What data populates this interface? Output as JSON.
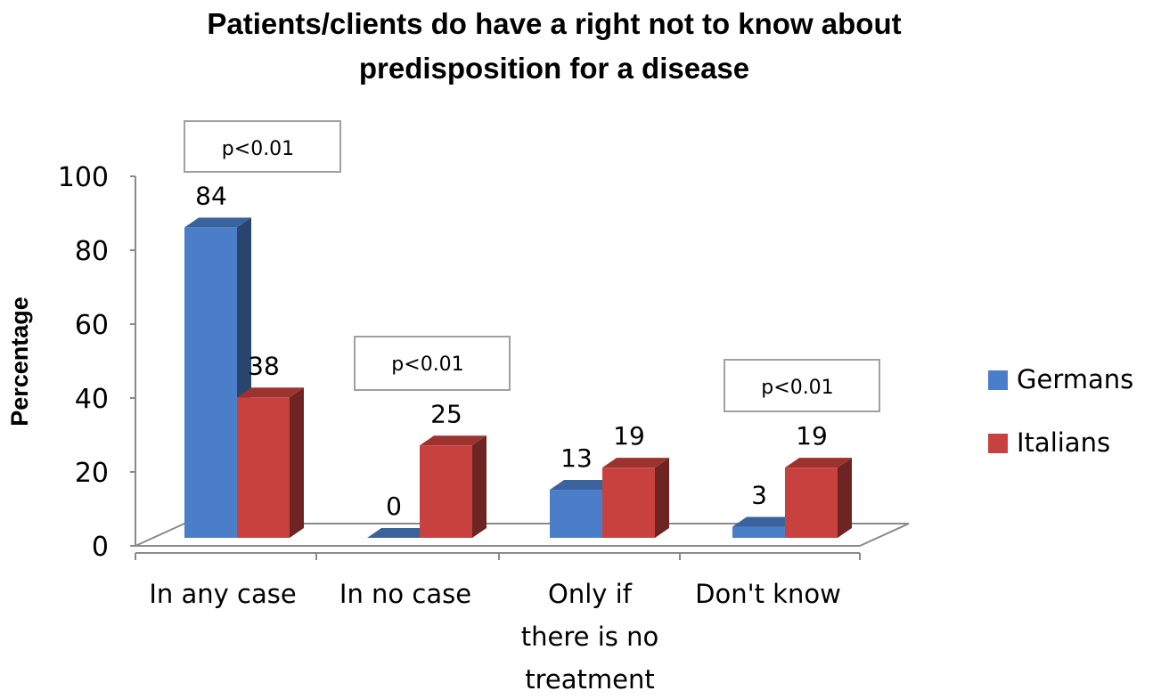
{
  "chart_data": {
    "type": "bar",
    "title_lines": [
      "Patients/clients do have a right not to know about",
      "predisposition for a disease"
    ],
    "ylabel": "Percentage",
    "xlabel": "",
    "ylim": [
      0,
      100
    ],
    "yticks": [
      0,
      20,
      40,
      60,
      80,
      100
    ],
    "categories": [
      [
        "In any case"
      ],
      [
        "In no case"
      ],
      [
        "Only if",
        "there is no",
        "treatment"
      ],
      [
        "Don't know"
      ]
    ],
    "series": [
      {
        "name": "Germans",
        "values": [
          84,
          0,
          13,
          3
        ],
        "color": "#4A7EC8"
      },
      {
        "name": "Italians",
        "values": [
          38,
          25,
          19,
          19
        ],
        "color": "#C8413E"
      }
    ],
    "annotations": [
      "p<0.01",
      "p<0.01",
      "",
      "p<0.01"
    ],
    "legend_position": "right",
    "grid": false,
    "style": "3d-clustered-column"
  }
}
